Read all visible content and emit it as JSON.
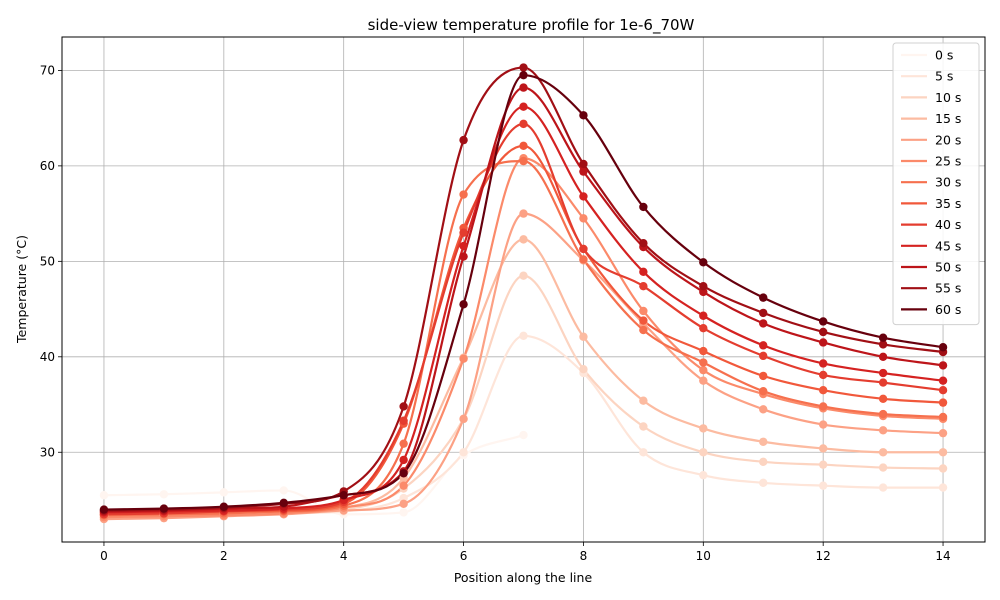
{
  "chart_data": {
    "type": "line",
    "title": "side-view temperature profile for 1e-6_70W",
    "xlabel": "Position along the line",
    "ylabel": "Temperature (°C)",
    "xlim": [
      -0.7,
      14.7
    ],
    "ylim": [
      20.6,
      73.5
    ],
    "xticks": [
      0,
      2,
      4,
      6,
      8,
      10,
      12,
      14
    ],
    "yticks": [
      30,
      40,
      50,
      60,
      70
    ],
    "grid": true,
    "legend_position": "top-right",
    "series": [
      {
        "name": "0 s",
        "color": "#fff5f0",
        "x": [
          0,
          1,
          2,
          3,
          4,
          5,
          6,
          7
        ],
        "y": [
          25.5,
          25.6,
          25.8,
          26.0,
          23.5,
          23.7,
          29.7,
          31.8
        ]
      },
      {
        "name": "5 s",
        "color": "#fee5d9",
        "x": [
          0,
          1,
          2,
          3,
          4,
          5,
          6,
          7,
          8,
          9,
          10,
          11,
          12,
          13,
          14
        ],
        "y": [
          23.3,
          23.4,
          23.5,
          23.6,
          23.8,
          25.2,
          30.0,
          42.2,
          38.3,
          30.0,
          27.6,
          26.8,
          26.5,
          26.3,
          26.3
        ]
      },
      {
        "name": "10 s",
        "color": "#fcd4c1",
        "x": [
          0,
          1,
          2,
          3,
          4,
          5,
          6,
          7,
          8,
          9,
          10,
          11,
          12,
          13,
          14
        ],
        "y": [
          23.4,
          23.5,
          23.6,
          23.7,
          24.0,
          26.2,
          33.5,
          48.5,
          38.7,
          32.7,
          30.0,
          29.0,
          28.7,
          28.4,
          28.3
        ]
      },
      {
        "name": "15 s",
        "color": "#fcbba1",
        "x": [
          0,
          1,
          2,
          3,
          4,
          5,
          6,
          7,
          8,
          9,
          10,
          11,
          12,
          13,
          14
        ],
        "y": [
          23.5,
          23.6,
          23.7,
          23.8,
          24.2,
          27.3,
          39.9,
          52.3,
          42.1,
          35.4,
          32.5,
          31.1,
          30.4,
          30.0,
          30.0
        ]
      },
      {
        "name": "20 s",
        "color": "#fca185",
        "x": [
          0,
          1,
          2,
          3,
          4,
          5,
          6,
          7,
          8,
          9,
          10,
          11,
          12,
          13,
          14
        ],
        "y": [
          23.0,
          23.1,
          23.3,
          23.5,
          23.9,
          24.6,
          33.5,
          55.0,
          50.1,
          43.5,
          37.5,
          34.5,
          32.9,
          32.3,
          32.0
        ]
      },
      {
        "name": "25 s",
        "color": "#fb8a6a",
        "x": [
          0,
          1,
          2,
          3,
          4,
          5,
          6,
          7,
          8,
          9,
          10,
          11,
          12,
          13,
          14
        ],
        "y": [
          23.2,
          23.3,
          23.4,
          23.6,
          24.2,
          26.5,
          39.8,
          60.8,
          54.5,
          44.8,
          38.6,
          36.1,
          34.6,
          33.8,
          33.5
        ]
      },
      {
        "name": "30 s",
        "color": "#f6704e",
        "x": [
          0,
          1,
          2,
          3,
          4,
          5,
          6,
          7,
          8,
          9,
          10,
          11,
          12,
          13,
          14
        ],
        "y": [
          23.4,
          23.5,
          23.6,
          23.8,
          24.4,
          30.9,
          57.0,
          60.5,
          50.2,
          42.8,
          39.4,
          36.4,
          34.8,
          34.0,
          33.7
        ]
      },
      {
        "name": "35 s",
        "color": "#f1583b",
        "x": [
          0,
          1,
          2,
          3,
          4,
          5,
          6,
          7,
          8,
          9,
          10,
          11,
          12,
          13,
          14
        ],
        "y": [
          23.6,
          23.7,
          23.8,
          23.9,
          24.6,
          33.0,
          53.5,
          62.1,
          51.3,
          43.8,
          40.6,
          38.0,
          36.5,
          35.6,
          35.2
        ]
      },
      {
        "name": "40 s",
        "color": "#e43d2f",
        "x": [
          0,
          1,
          2,
          3,
          4,
          5,
          6,
          7,
          8,
          9,
          10,
          11,
          12,
          13,
          14
        ],
        "y": [
          23.5,
          23.6,
          23.8,
          24.0,
          24.8,
          33.3,
          53.0,
          64.4,
          51.3,
          47.4,
          43.0,
          40.1,
          38.1,
          37.3,
          36.5
        ]
      },
      {
        "name": "45 s",
        "color": "#d52221",
        "x": [
          0,
          1,
          2,
          3,
          4,
          5,
          6,
          7,
          8,
          9,
          10,
          11,
          12,
          13,
          14
        ],
        "y": [
          23.7,
          23.8,
          23.9,
          24.1,
          25.0,
          29.2,
          51.6,
          66.2,
          56.8,
          48.9,
          44.3,
          41.2,
          39.3,
          38.3,
          37.5
        ]
      },
      {
        "name": "50 s",
        "color": "#bd151a",
        "x": [
          0,
          1,
          2,
          3,
          4,
          5,
          6,
          7,
          8,
          9,
          10,
          11,
          12,
          13,
          14
        ],
        "y": [
          23.8,
          23.9,
          24.1,
          24.3,
          25.5,
          28.0,
          50.5,
          68.2,
          59.4,
          51.5,
          46.8,
          43.5,
          41.5,
          40.0,
          39.1
        ]
      },
      {
        "name": "55 s",
        "color": "#a10f15",
        "x": [
          0,
          1,
          2,
          3,
          4,
          5,
          6,
          7,
          8,
          9,
          10,
          11,
          12,
          13,
          14
        ],
        "y": [
          23.9,
          24.0,
          24.2,
          24.6,
          25.9,
          34.8,
          62.7,
          70.3,
          60.2,
          51.9,
          47.4,
          44.6,
          42.6,
          41.3,
          40.5
        ]
      },
      {
        "name": "60 s",
        "color": "#67000d",
        "x": [
          0,
          1,
          2,
          3,
          4,
          5,
          6,
          7,
          8,
          9,
          10,
          11,
          12,
          13,
          14
        ],
        "y": [
          24.0,
          24.1,
          24.3,
          24.7,
          25.5,
          27.8,
          45.5,
          69.5,
          65.3,
          55.7,
          49.9,
          46.2,
          43.7,
          42.0,
          41.0
        ]
      }
    ]
  }
}
